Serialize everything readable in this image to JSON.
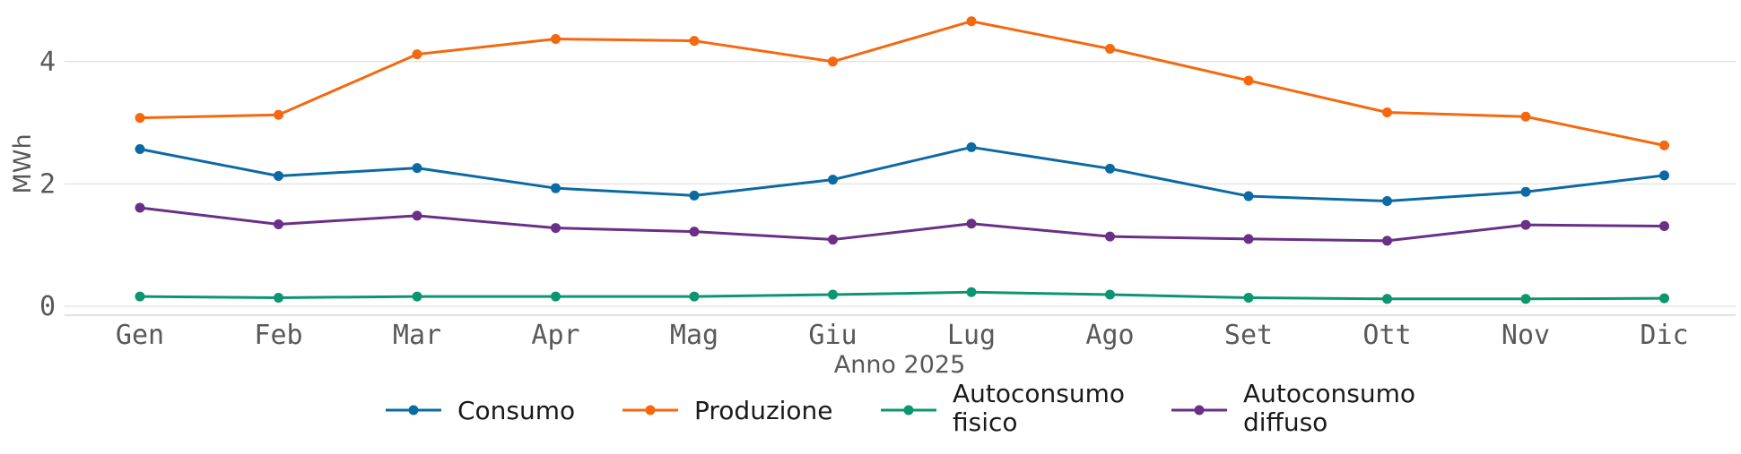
{
  "chart_data": {
    "type": "line",
    "categories": [
      "Gen",
      "Feb",
      "Mar",
      "Apr",
      "Mag",
      "Giu",
      "Lug",
      "Ago",
      "Set",
      "Ott",
      "Nov",
      "Dic"
    ],
    "xlabel": "Anno 2025",
    "ylabel": "MWh",
    "ylim": [
      0,
      4.9
    ],
    "yticks": [
      0,
      2,
      4
    ],
    "grid": "horizontal",
    "legend_position": "bottom",
    "series": [
      {
        "name": "Consumo",
        "color": "#0b6aa3",
        "values": [
          2.57,
          2.13,
          2.26,
          1.93,
          1.81,
          2.07,
          2.6,
          2.25,
          1.8,
          1.72,
          1.87,
          2.14
        ]
      },
      {
        "name": "Produzione",
        "color": "#f4690f",
        "values": [
          3.08,
          3.13,
          4.12,
          4.37,
          4.34,
          4.0,
          4.66,
          4.21,
          3.69,
          3.17,
          3.1,
          2.63
        ]
      },
      {
        "name": "Autoconsumo fisico",
        "legend_lines": [
          "Autoconsumo",
          "fisico"
        ],
        "color": "#0c9670",
        "values": [
          0.16,
          0.14,
          0.16,
          0.16,
          0.16,
          0.19,
          0.23,
          0.19,
          0.14,
          0.12,
          0.12,
          0.13
        ]
      },
      {
        "name": "Autoconsumo diffuso",
        "legend_lines": [
          "Autoconsumo",
          "diffuso"
        ],
        "color": "#6a2f86",
        "values": [
          1.61,
          1.34,
          1.48,
          1.28,
          1.22,
          1.09,
          1.35,
          1.14,
          1.1,
          1.07,
          1.33,
          1.31
        ]
      }
    ]
  }
}
